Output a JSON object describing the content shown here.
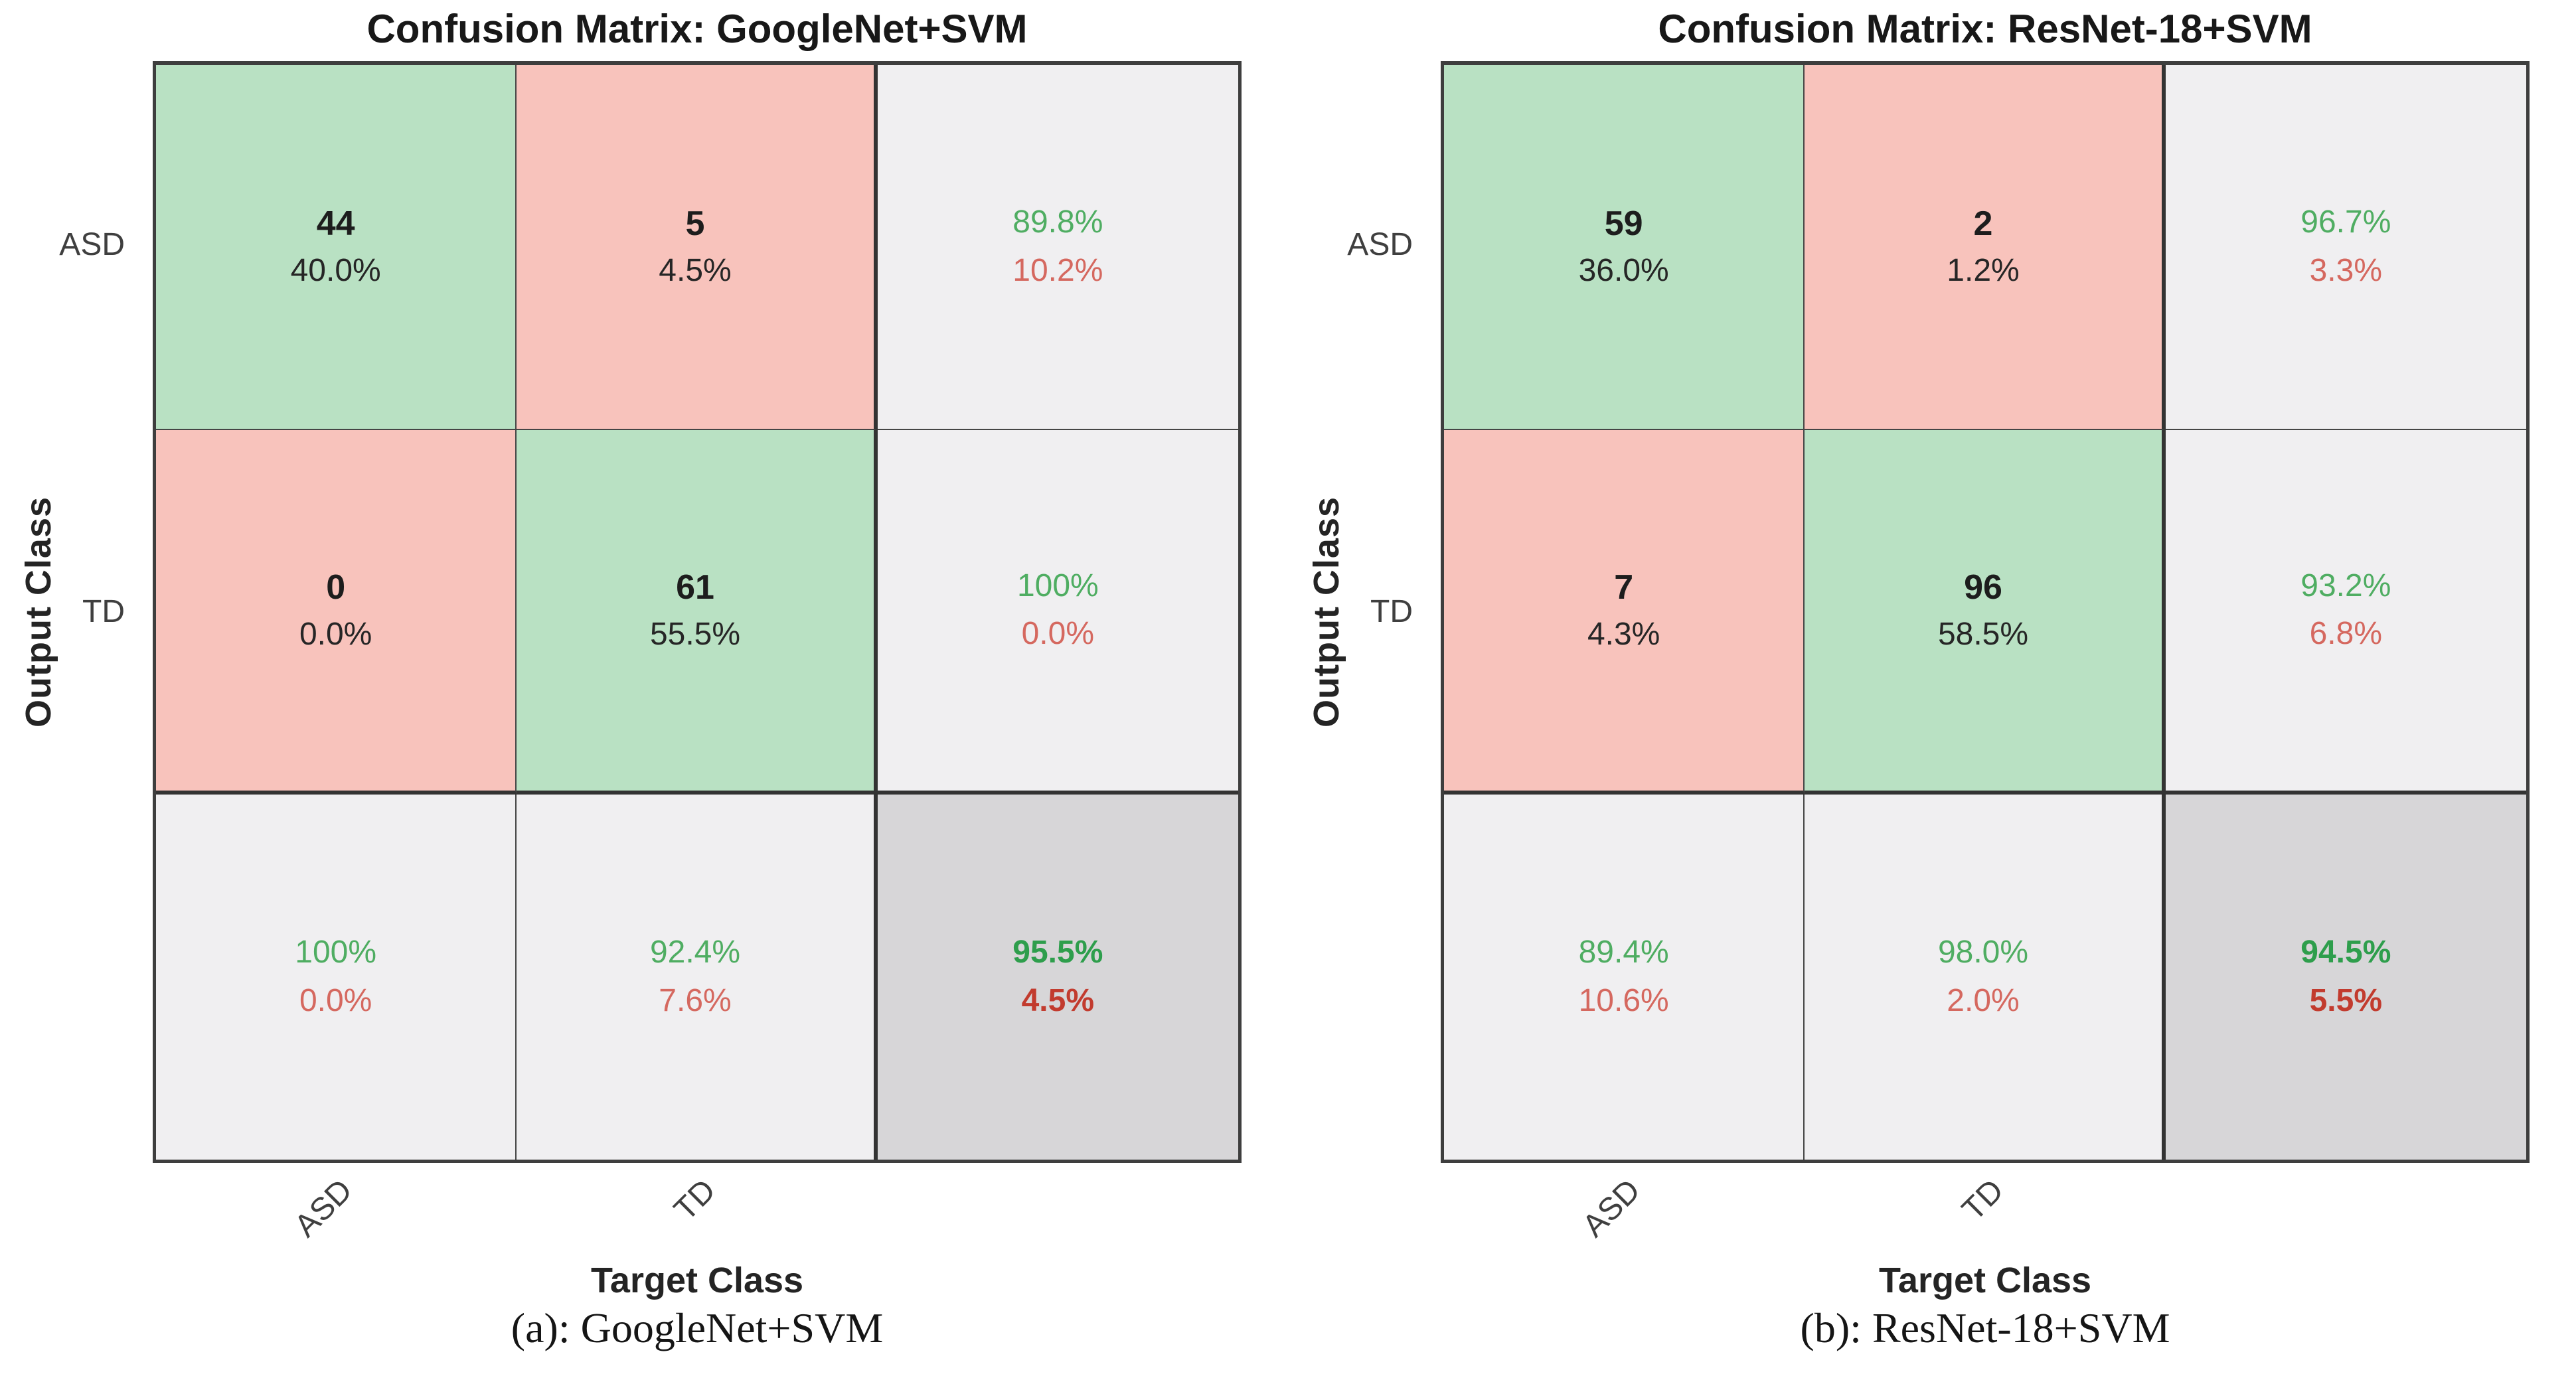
{
  "chart_data": [
    {
      "type": "heatmap",
      "title": "Confusion Matrix: GoogleNet+SVM",
      "caption": "(a): GoogleNet+SVM",
      "xlabel": "Target Class",
      "ylabel": "Output Class",
      "classes": [
        "ASD",
        "TD"
      ],
      "matrix": [
        [
          44,
          5
        ],
        [
          0,
          61
        ]
      ],
      "cell_percents": [
        [
          "40.0%",
          "4.5%"
        ],
        [
          "0.0%",
          "55.5%"
        ]
      ],
      "row_summary": [
        [
          "89.8%",
          "10.2%"
        ],
        [
          "100%",
          "0.0%"
        ]
      ],
      "col_summary": [
        [
          "100%",
          "0.0%"
        ],
        [
          "92.4%",
          "7.6%"
        ]
      ],
      "overall": [
        "95.5%",
        "4.5%"
      ],
      "legend_position": "none",
      "grid": "on"
    },
    {
      "type": "heatmap",
      "title": "Confusion Matrix: ResNet-18+SVM",
      "caption": "(b): ResNet-18+SVM",
      "xlabel": "Target Class",
      "ylabel": "Output Class",
      "classes": [
        "ASD",
        "TD"
      ],
      "matrix": [
        [
          59,
          2
        ],
        [
          7,
          96
        ]
      ],
      "cell_percents": [
        [
          "36.0%",
          "1.2%"
        ],
        [
          "4.3%",
          "58.5%"
        ]
      ],
      "row_summary": [
        [
          "96.7%",
          "3.3%"
        ],
        [
          "93.2%",
          "6.8%"
        ]
      ],
      "col_summary": [
        [
          "89.4%",
          "10.6%"
        ],
        [
          "98.0%",
          "2.0%"
        ]
      ],
      "overall": [
        "94.5%",
        "5.5%"
      ],
      "legend_position": "none",
      "grid": "on"
    }
  ],
  "colors": {
    "correct_cell_green": "#b9e1c3",
    "incorrect_cell_red": "#f8c3bc",
    "summary_cell_gray": "#f0eff1",
    "overall_cell_gray": "#d7d6d8",
    "summary_green_text": "#4fad62",
    "summary_red_text": "#d5685f",
    "overall_green_text": "#2e9e4c",
    "overall_red_text": "#c23b2e",
    "count_text": "#1d1d1d",
    "tick_text": "#3f3f3f",
    "grid_line": "#454545",
    "separator_line": "#333333",
    "background": "#ffffff"
  }
}
